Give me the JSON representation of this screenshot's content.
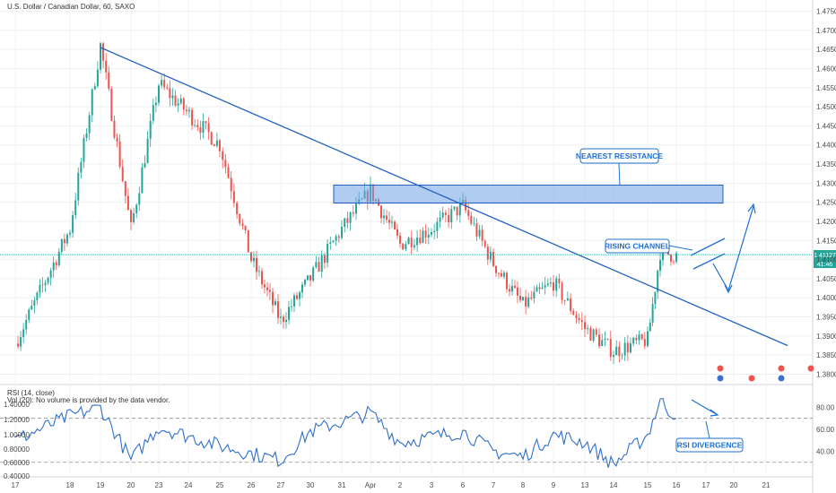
{
  "header": {
    "title": "U.S. Dollar / Canadian Dollar, 60, SAXO"
  },
  "colors": {
    "bull": "#26a69a",
    "bear": "#ef5350",
    "trend": "#1f5fbf",
    "zone_fill": "#6fa3e6",
    "annotation": "#1f6fd1",
    "rsi": "#2f6fc9",
    "price_line": "#26a69a"
  },
  "indicators": {
    "rsi_label": "RSI (14, close)",
    "vol_label": "Vol (20): No volume is provided by the data vendor."
  },
  "annotations": {
    "nearest_resistance": "NEAREST RESISTANCE",
    "rising_channel": "RISING CHANNEL",
    "rsi_divergence": "RSI DIVERGENCE"
  },
  "price_badge": {
    "value": "1.41127",
    "countdown": "41:46"
  },
  "chart_data": [
    {
      "type": "candlestick",
      "title": "U.S. Dollar / Canadian Dollar, 60, SAXO",
      "y_ticks": [
        "1.47500",
        "1.47000",
        "1.46500",
        "1.46000",
        "1.45500",
        "1.45000",
        "1.44500",
        "1.44000",
        "1.43500",
        "1.43000",
        "1.42500",
        "1.42000",
        "1.41500",
        "1.41000",
        "1.40500",
        "1.40000",
        "1.39500",
        "1.39000",
        "1.38500",
        "1.38000"
      ],
      "ylim": [
        1.378,
        1.477
      ],
      "x_ticks": [
        "17",
        "18",
        "19",
        "20",
        "23",
        "24",
        "25",
        "26",
        "27",
        "30",
        "31",
        "Apr",
        "2",
        "3",
        "6",
        "7",
        "8",
        "9",
        "13",
        "14",
        "15",
        "16",
        "17",
        "20",
        "21"
      ],
      "last_price": 1.41127,
      "resistance_zone": [
        1.4248,
        1.4295
      ],
      "downtrend_line": [
        {
          "x": "19",
          "y": 1.4655
        },
        {
          "x": "21",
          "y": 1.3875
        }
      ],
      "key_points": [
        {
          "x": "17",
          "y": 1.388
        },
        {
          "x": "18",
          "y": 1.418
        },
        {
          "x": "19",
          "y": 1.466
        },
        {
          "x": "20",
          "y": 1.418
        },
        {
          "x": "23",
          "y": 1.456
        },
        {
          "x": "25",
          "y": 1.44
        },
        {
          "x": "26",
          "y": 1.41
        },
        {
          "x": "27",
          "y": 1.394
        },
        {
          "x": "30",
          "y": 1.405
        },
        {
          "x": "31",
          "y": 1.418
        },
        {
          "x": "Apr",
          "y": 1.428
        },
        {
          "x": "2",
          "y": 1.414
        },
        {
          "x": "3",
          "y": 1.418
        },
        {
          "x": "6",
          "y": 1.424
        },
        {
          "x": "7",
          "y": 1.409
        },
        {
          "x": "8",
          "y": 1.398
        },
        {
          "x": "9",
          "y": 1.404
        },
        {
          "x": "13",
          "y": 1.392
        },
        {
          "x": "14",
          "y": 1.386
        },
        {
          "x": "15",
          "y": 1.389
        },
        {
          "x": "15",
          "y": 1.412
        },
        {
          "x": "16",
          "y": 1.411
        }
      ]
    },
    {
      "type": "line",
      "title": "RSI (14, close)",
      "y_ticks": [
        "80.00",
        "60.00",
        "40.00",
        "1.40000",
        "1.20000",
        "1.00000",
        "0.80000",
        "0.60000",
        "0.40000"
      ],
      "levels": [
        70,
        30
      ],
      "key_points": [
        {
          "x": "17",
          "y": 50
        },
        {
          "x": "18",
          "y": 72
        },
        {
          "x": "19",
          "y": 80
        },
        {
          "x": "20",
          "y": 32
        },
        {
          "x": "23",
          "y": 62
        },
        {
          "x": "25",
          "y": 45
        },
        {
          "x": "26",
          "y": 38
        },
        {
          "x": "27",
          "y": 32
        },
        {
          "x": "30",
          "y": 58
        },
        {
          "x": "Apr",
          "y": 75
        },
        {
          "x": "2",
          "y": 48
        },
        {
          "x": "6",
          "y": 58
        },
        {
          "x": "7",
          "y": 40
        },
        {
          "x": "8",
          "y": 35
        },
        {
          "x": "9",
          "y": 55
        },
        {
          "x": "13",
          "y": 48
        },
        {
          "x": "14",
          "y": 28
        },
        {
          "x": "15",
          "y": 55
        },
        {
          "x": "15",
          "y": 86
        },
        {
          "x": "16",
          "y": 70
        }
      ]
    }
  ]
}
